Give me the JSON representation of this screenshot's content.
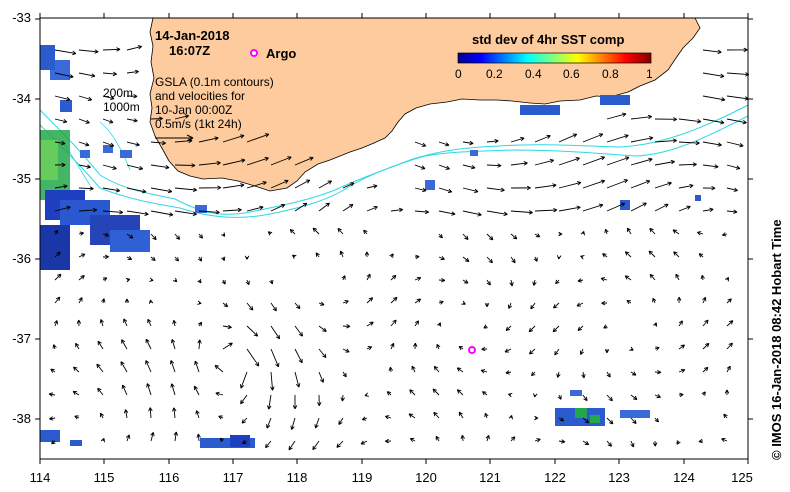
{
  "annotation": {
    "date": "14-Jan-2018",
    "time": "16:07Z",
    "argo_label": "Argo",
    "gsla_lines": [
      "GSLA (0.1m contours)",
      "and velocities for",
      "10-Jan 00:00Z",
      "0.5m/s (1kt 24h)"
    ],
    "depth_200": "200m",
    "depth_1000": "1000m"
  },
  "colorbar": {
    "title": "std dev of 4hr SST comp",
    "ticks": [
      "0",
      "0.2",
      "0.4",
      "0.6",
      "0.8",
      "1"
    ]
  },
  "axes": {
    "lon_ticks": [
      "114",
      "115",
      "116",
      "117",
      "118",
      "119",
      "120",
      "121",
      "122",
      "123",
      "124",
      "125"
    ],
    "lat_ticks": [
      "-33",
      "-34",
      "-35",
      "-36",
      "-37",
      "-38"
    ]
  },
  "credit": "© IMOS 16-Jan-2018 08:42 Hobart Time",
  "colors": {
    "land": "#fdcb9d",
    "contour": "#31d8e0",
    "arrow": "#000000",
    "argo": "#ff00ff"
  }
}
